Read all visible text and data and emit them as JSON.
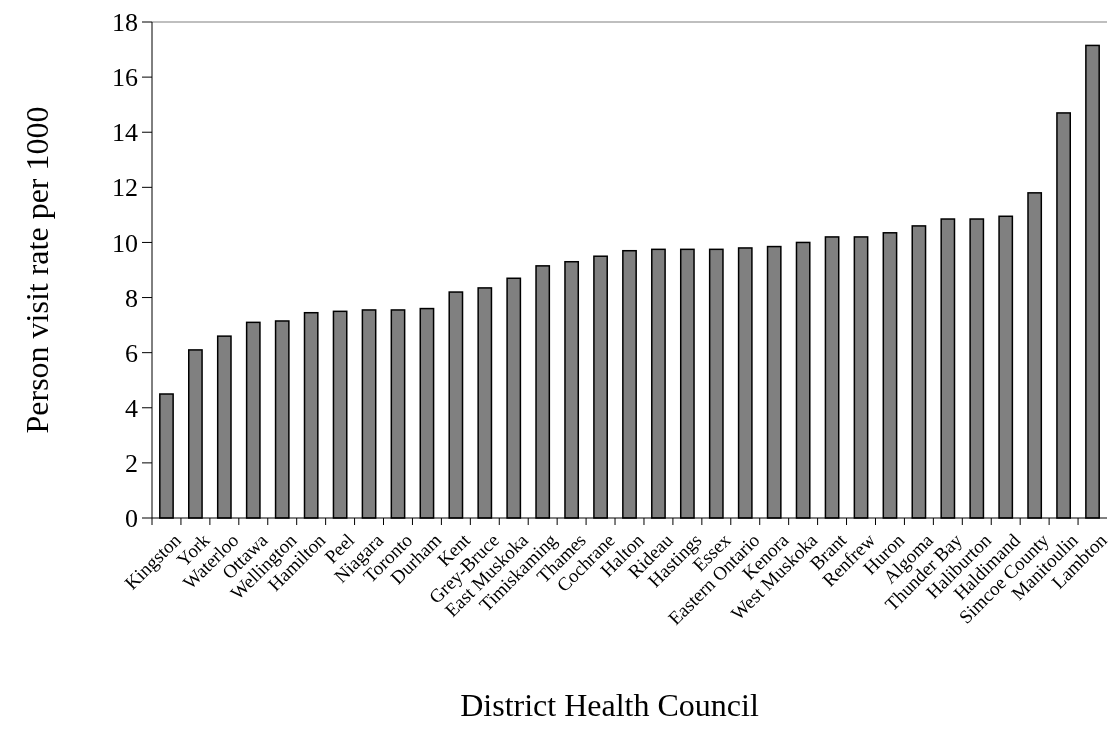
{
  "chart_data": {
    "type": "bar",
    "xlabel": "District Health Council",
    "ylabel": "Person visit rate per 1000",
    "categories": [
      "Kingston",
      "York",
      "Waterloo",
      "Ottawa",
      "Wellington",
      "Hamilton",
      "Peel",
      "Niagara",
      "Toronto",
      "Durham",
      "Kent",
      "Grey-Bruce",
      "East Muskoka",
      "Timiskaming",
      "Thames",
      "Cochrane",
      "Halton",
      "Rideau",
      "Hastings",
      "Essex",
      "Eastern Ontario",
      "Kenora",
      "West Muskoka",
      "Brant",
      "Renfrew",
      "Huron",
      "Algoma",
      "Thunder Bay",
      "Haliburton",
      "Haldimand",
      "Simcoe County",
      "Manitoulin",
      "Lambton"
    ],
    "values": [
      4.5,
      6.1,
      6.6,
      7.1,
      7.15,
      7.45,
      7.5,
      7.55,
      7.55,
      7.6,
      8.2,
      8.35,
      8.7,
      9.15,
      9.3,
      9.5,
      9.7,
      9.75,
      9.75,
      9.75,
      9.8,
      9.85,
      10.0,
      10.2,
      10.2,
      10.35,
      10.6,
      10.85,
      10.85,
      10.95,
      11.8,
      14.7,
      17.15
    ],
    "color": "#808080",
    "ylim": [
      0,
      18
    ],
    "yticks": [
      0,
      2,
      4,
      6,
      8,
      10,
      12,
      14,
      16,
      18
    ],
    "grid": false
  }
}
